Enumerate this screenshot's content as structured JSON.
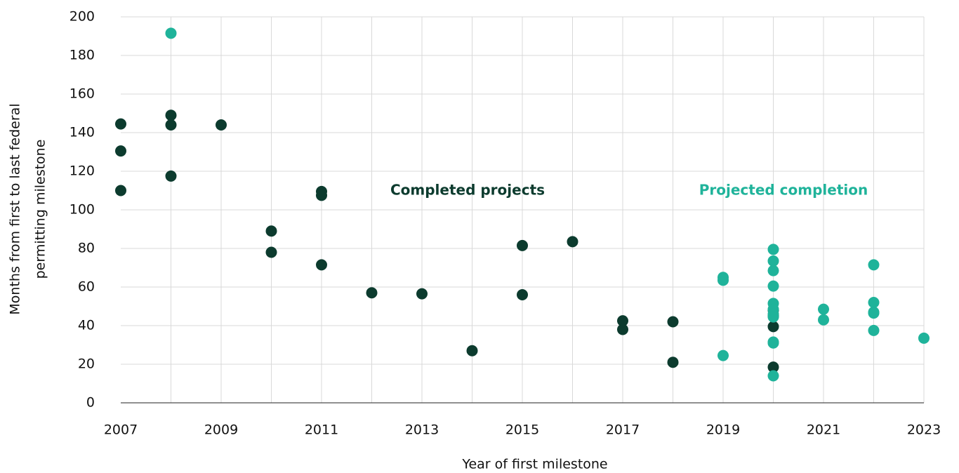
{
  "chart_data": {
    "type": "scatter",
    "xlabel": "Year of first milestone",
    "ylabel": [
      "Months from first to last federal",
      "permitting milestone"
    ],
    "xlim": [
      2007,
      2023
    ],
    "xticks": [
      2007,
      2009,
      2011,
      2013,
      2015,
      2017,
      2019,
      2021,
      2023
    ],
    "minor_xticks": [
      2008,
      2010,
      2012,
      2014,
      2016,
      2018,
      2020,
      2022
    ],
    "ylim": [
      0,
      200
    ],
    "yticks": [
      0,
      20,
      40,
      60,
      80,
      100,
      120,
      140,
      160,
      180,
      200
    ],
    "grid": true,
    "series": [
      {
        "name": "Completed projects",
        "color": "#0c3b2e",
        "x": [
          2007,
          2007,
          2007,
          2008,
          2008,
          2008,
          2009,
          2010,
          2010,
          2011,
          2011,
          2011,
          2012,
          2013,
          2014,
          2015,
          2015,
          2016,
          2017,
          2017,
          2018,
          2018,
          2020,
          2020,
          2020,
          2020
        ],
        "values": [
          144.5,
          130.5,
          110,
          149,
          144,
          117.5,
          144,
          89,
          78,
          109.5,
          107.5,
          71.5,
          57,
          56.5,
          27,
          81.5,
          56,
          83.5,
          42.5,
          38,
          42,
          21,
          48,
          45,
          39.5,
          18.5
        ]
      },
      {
        "name": "Projected completion",
        "color": "#1fb39a",
        "x": [
          2008,
          2019,
          2019,
          2019,
          2020,
          2020,
          2020,
          2020,
          2020,
          2020,
          2020,
          2020,
          2020,
          2020,
          2020,
          2021,
          2021,
          2022,
          2022,
          2022,
          2022,
          2022,
          2023
        ],
        "values": [
          191.5,
          65,
          63.5,
          24.5,
          79.5,
          73.5,
          68.5,
          60.5,
          51.5,
          48.5,
          46,
          44.5,
          31.5,
          31,
          14,
          48.5,
          43,
          71.5,
          52,
          47,
          46.5,
          37.5,
          33.5
        ]
      }
    ]
  }
}
